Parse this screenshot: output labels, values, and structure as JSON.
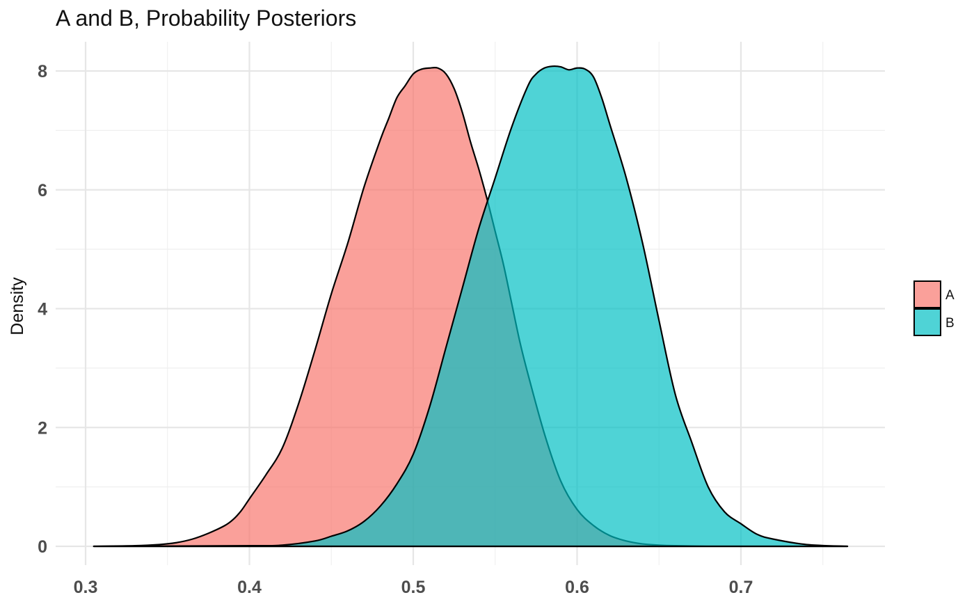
{
  "chart_data": {
    "type": "area",
    "title": "A and B, Probability Posteriors",
    "xlabel": "",
    "ylabel": "Density",
    "xlim": [
      0.305,
      0.765
    ],
    "ylim": [
      0,
      8.1
    ],
    "x_ticks": [
      0.3,
      0.4,
      0.5,
      0.6,
      0.7
    ],
    "x_tick_labels": [
      "0.3",
      "0.4",
      "0.5",
      "0.6",
      "0.7"
    ],
    "y_ticks": [
      0,
      2,
      4,
      6,
      8
    ],
    "y_tick_labels": [
      "0",
      "2",
      "4",
      "6",
      "8"
    ],
    "grid": true,
    "legend_position": "right",
    "series": [
      {
        "name": "A",
        "color": "#F8766D",
        "x": [
          0.305,
          0.33,
          0.345,
          0.355,
          0.365,
          0.375,
          0.385,
          0.39,
          0.395,
          0.4,
          0.41,
          0.42,
          0.43,
          0.44,
          0.45,
          0.46,
          0.47,
          0.48,
          0.485,
          0.49,
          0.495,
          0.5,
          0.505,
          0.51,
          0.515,
          0.52,
          0.525,
          0.53,
          0.535,
          0.54,
          0.545,
          0.55,
          0.555,
          0.56,
          0.565,
          0.57,
          0.58,
          0.59,
          0.6,
          0.61,
          0.62,
          0.63,
          0.64,
          0.65,
          0.66,
          0.68,
          0.7,
          0.765
        ],
        "values": [
          0.0,
          0.01,
          0.03,
          0.06,
          0.12,
          0.22,
          0.35,
          0.45,
          0.6,
          0.8,
          1.2,
          1.65,
          2.4,
          3.3,
          4.25,
          5.1,
          6.05,
          6.85,
          7.2,
          7.55,
          7.75,
          7.95,
          8.03,
          8.05,
          8.05,
          7.95,
          7.7,
          7.3,
          6.8,
          6.35,
          5.85,
          5.3,
          4.75,
          4.1,
          3.45,
          2.9,
          1.9,
          1.1,
          0.62,
          0.35,
          0.18,
          0.09,
          0.04,
          0.02,
          0.01,
          0.0,
          0.0,
          0.0
        ]
      },
      {
        "name": "B",
        "color": "#00BFC4",
        "x": [
          0.305,
          0.4,
          0.42,
          0.44,
          0.45,
          0.46,
          0.47,
          0.48,
          0.49,
          0.5,
          0.51,
          0.52,
          0.53,
          0.54,
          0.55,
          0.56,
          0.57,
          0.575,
          0.58,
          0.585,
          0.59,
          0.595,
          0.6,
          0.605,
          0.61,
          0.615,
          0.62,
          0.63,
          0.64,
          0.65,
          0.66,
          0.67,
          0.68,
          0.69,
          0.7,
          0.71,
          0.72,
          0.74,
          0.765
        ],
        "values": [
          0.0,
          0.01,
          0.02,
          0.09,
          0.17,
          0.26,
          0.42,
          0.68,
          1.05,
          1.55,
          2.35,
          3.35,
          4.35,
          5.35,
          6.2,
          7.05,
          7.75,
          7.95,
          8.05,
          8.08,
          8.07,
          8.02,
          8.05,
          8.03,
          7.9,
          7.55,
          7.1,
          6.2,
          5.1,
          3.8,
          2.55,
          1.75,
          1.0,
          0.58,
          0.38,
          0.2,
          0.12,
          0.03,
          0.0
        ]
      }
    ]
  }
}
